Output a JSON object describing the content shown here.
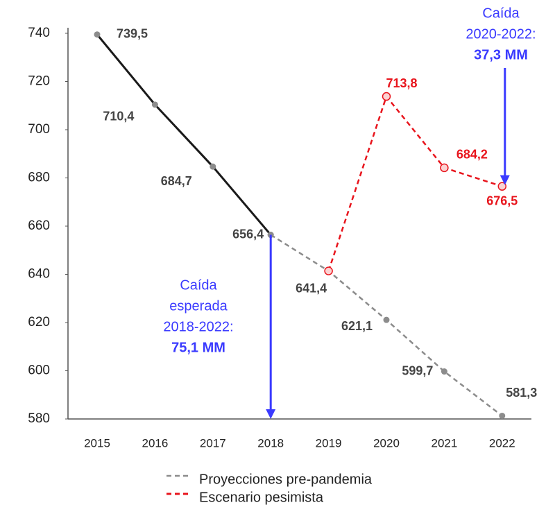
{
  "chart_data": {
    "type": "line",
    "categories": [
      "2015",
      "2016",
      "2017",
      "2018",
      "2019",
      "2020",
      "2021",
      "2022"
    ],
    "series": [
      {
        "color": "#1a1a1a",
        "dashed": false,
        "values": [
          739.5,
          710.4,
          684.7,
          656.4,
          null,
          null,
          null,
          null
        ],
        "value_labels": [
          "739,5",
          "710,4",
          "684,7",
          "656,4",
          null,
          null,
          null,
          null
        ]
      },
      {
        "name": "Proyecciones pre-pandemia",
        "color": "#8c8c8c",
        "dashed": true,
        "values": [
          null,
          null,
          null,
          656.4,
          641.4,
          621.1,
          599.7,
          581.3
        ],
        "value_labels": [
          null,
          null,
          null,
          null,
          "641,4",
          "621,1",
          "599,7",
          "581,3"
        ]
      },
      {
        "name": "Escenario pesimista",
        "color": "#e8141c",
        "dashed": true,
        "values": [
          null,
          null,
          null,
          null,
          641.4,
          713.8,
          684.2,
          676.5
        ],
        "value_labels": [
          null,
          null,
          null,
          null,
          null,
          "713,8",
          "684,2",
          "676,5"
        ]
      }
    ],
    "ylim": [
      580,
      740
    ],
    "yticks": [
      580,
      600,
      620,
      640,
      660,
      680,
      700,
      720,
      740
    ],
    "annotations": [
      {
        "lines": [
          "Caída",
          "esperada",
          "2018-2022:"
        ],
        "value": "75,1 MM"
      },
      {
        "lines": [
          "Caída",
          "2020-2022:"
        ],
        "value": "37,3 MM"
      }
    ]
  }
}
